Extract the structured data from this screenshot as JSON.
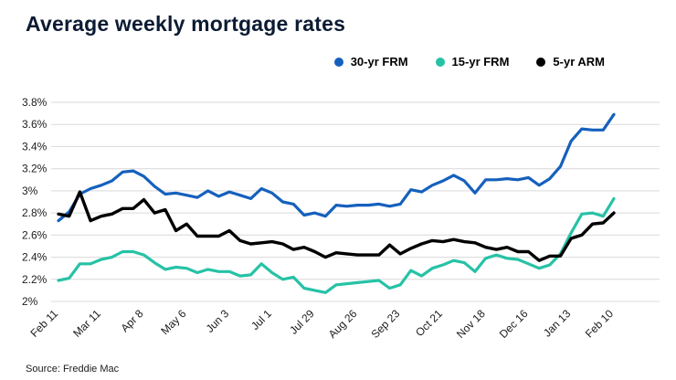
{
  "chart_data": {
    "type": "line",
    "title": "Average weekly mortgage rates",
    "source": "Source: Freddie Mac",
    "grid": "horizontal",
    "legend_position": "top-right",
    "ylim": [
      2.0,
      3.8
    ],
    "y_ticks": [
      3.8,
      3.6,
      3.4,
      3.2,
      3.0,
      2.8,
      2.6,
      2.4,
      2.2,
      2.0
    ],
    "y_tick_labels": [
      "3.8%",
      "3.6%",
      "3.4%",
      "3.2%",
      "3%",
      "2.8%",
      "2.6%",
      "2.4%",
      "2.2%",
      "2%"
    ],
    "x_tick_labels": [
      "Feb 11",
      "Mar 11",
      "Apr 8",
      "May 6",
      "Jun 3",
      "Jul 1",
      "Jul 29",
      "Aug 26",
      "Sep 23",
      "Oct 21",
      "Nov 18",
      "Dec 16",
      "Jan 13",
      "Feb 10"
    ],
    "x_tick_indices": [
      0,
      4,
      8,
      12,
      16,
      20,
      24,
      28,
      32,
      36,
      40,
      44,
      48,
      52
    ],
    "series": [
      {
        "name": "30-yr FRM",
        "color": "#1560bd",
        "values": [
          2.73,
          2.81,
          2.97,
          3.02,
          3.05,
          3.09,
          3.17,
          3.18,
          3.13,
          3.04,
          2.97,
          2.98,
          2.96,
          2.94,
          3.0,
          2.95,
          2.99,
          2.96,
          2.93,
          3.02,
          2.98,
          2.9,
          2.88,
          2.78,
          2.8,
          2.77,
          2.87,
          2.86,
          2.87,
          2.87,
          2.88,
          2.86,
          2.88,
          3.01,
          2.99,
          3.05,
          3.09,
          3.14,
          3.09,
          2.98,
          3.1,
          3.1,
          3.11,
          3.1,
          3.12,
          3.05,
          3.11,
          3.22,
          3.45,
          3.56,
          3.55,
          3.55,
          3.69
        ]
      },
      {
        "name": "15-yr FRM",
        "color": "#26c2a6",
        "values": [
          2.19,
          2.21,
          2.34,
          2.34,
          2.38,
          2.4,
          2.45,
          2.45,
          2.42,
          2.35,
          2.29,
          2.31,
          2.3,
          2.26,
          2.29,
          2.27,
          2.27,
          2.23,
          2.24,
          2.34,
          2.26,
          2.2,
          2.22,
          2.12,
          2.1,
          2.08,
          2.15,
          2.16,
          2.17,
          2.18,
          2.19,
          2.12,
          2.15,
          2.28,
          2.23,
          2.3,
          2.33,
          2.37,
          2.35,
          2.27,
          2.39,
          2.42,
          2.39,
          2.38,
          2.34,
          2.3,
          2.33,
          2.43,
          2.62,
          2.79,
          2.8,
          2.77,
          2.93
        ]
      },
      {
        "name": "5-yr ARM",
        "color": "#000000",
        "values": [
          2.79,
          2.77,
          2.99,
          2.73,
          2.77,
          2.79,
          2.84,
          2.84,
          2.92,
          2.8,
          2.83,
          2.64,
          2.7,
          2.59,
          2.59,
          2.59,
          2.64,
          2.55,
          2.52,
          2.53,
          2.54,
          2.52,
          2.47,
          2.49,
          2.45,
          2.4,
          2.44,
          2.43,
          2.42,
          2.42,
          2.42,
          2.51,
          2.43,
          2.48,
          2.52,
          2.55,
          2.54,
          2.56,
          2.54,
          2.53,
          2.49,
          2.47,
          2.49,
          2.45,
          2.45,
          2.37,
          2.41,
          2.41,
          2.57,
          2.6,
          2.7,
          2.71,
          2.8
        ]
      }
    ]
  }
}
